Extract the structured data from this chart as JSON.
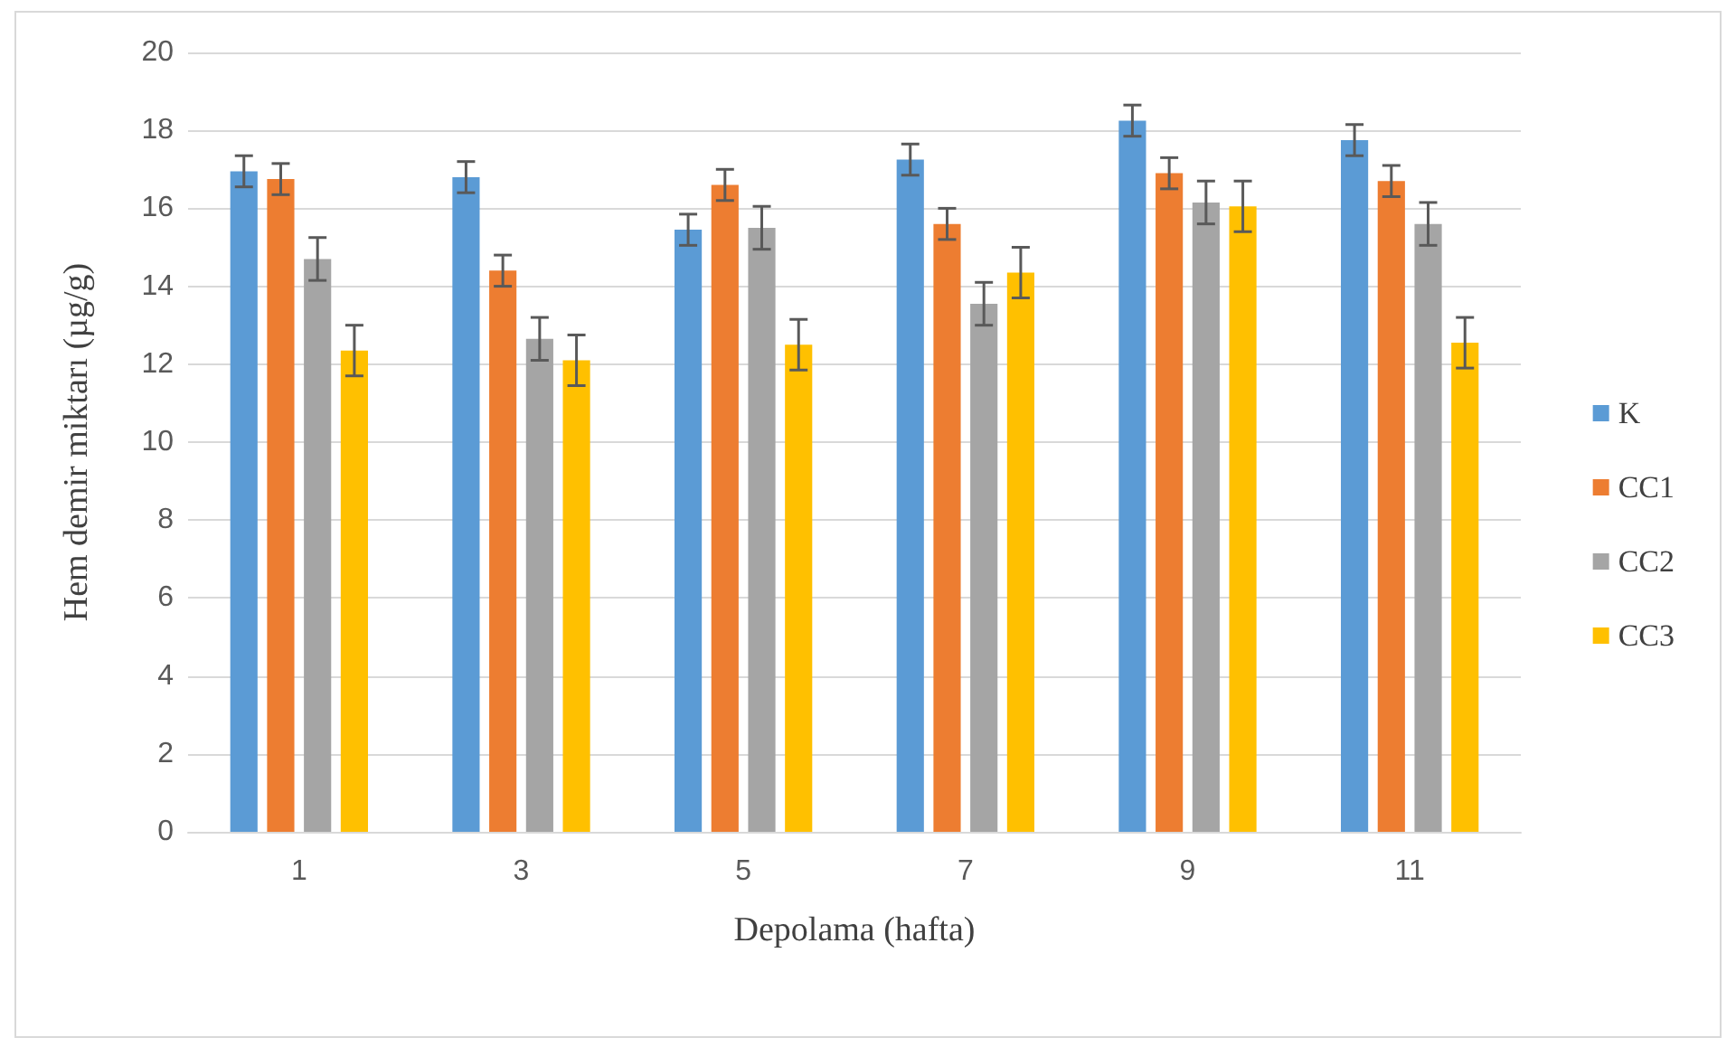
{
  "chart_data": {
    "type": "bar",
    "xlabel": "Depolama (hafta)",
    "ylabel": "Hem demir miktarı (µg/g)",
    "categories": [
      "1",
      "3",
      "5",
      "7",
      "9",
      "11"
    ],
    "series": [
      {
        "name": "K",
        "color": "#5b9bd5",
        "values": [
          16.95,
          16.8,
          15.45,
          17.25,
          18.25,
          17.75
        ],
        "errors": [
          0.4,
          0.4,
          0.4,
          0.4,
          0.4,
          0.4
        ]
      },
      {
        "name": "CC1",
        "color": "#ed7d31",
        "values": [
          16.75,
          14.4,
          16.6,
          15.6,
          16.9,
          16.7
        ],
        "errors": [
          0.4,
          0.4,
          0.4,
          0.4,
          0.4,
          0.4
        ]
      },
      {
        "name": "CC2",
        "color": "#a5a5a5",
        "values": [
          14.7,
          12.65,
          15.5,
          13.55,
          16.15,
          15.6
        ],
        "errors": [
          0.55,
          0.55,
          0.55,
          0.55,
          0.55,
          0.55
        ]
      },
      {
        "name": "CC3",
        "color": "#ffc000",
        "values": [
          12.35,
          12.1,
          12.5,
          14.35,
          16.05,
          12.55
        ],
        "errors": [
          0.65,
          0.65,
          0.65,
          0.65,
          0.65,
          0.65
        ]
      }
    ],
    "ylim": [
      0,
      20
    ],
    "yticks": [
      0,
      2,
      4,
      6,
      8,
      10,
      12,
      14,
      16,
      18,
      20
    ],
    "grid": "y",
    "legend": "right"
  }
}
